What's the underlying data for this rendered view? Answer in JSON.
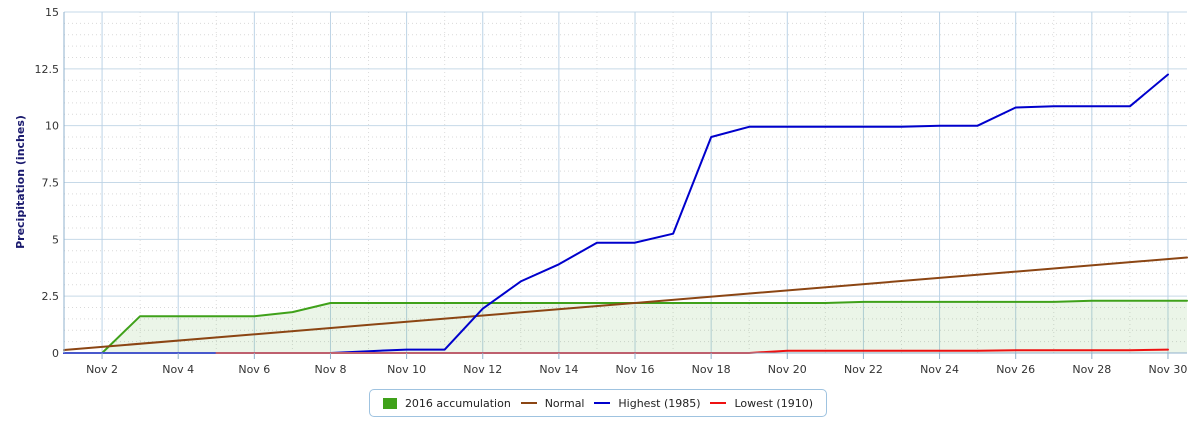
{
  "chart_data": {
    "type": "line",
    "ylabel": "Precipitation (inches)",
    "ylim": [
      0,
      15
    ],
    "xlim": [
      1,
      30.5
    ],
    "yticks": [
      "0",
      "2.5",
      "5",
      "7.5",
      "10",
      "12.5",
      "15"
    ],
    "xticks": [
      {
        "day": 2,
        "label": "Nov 2"
      },
      {
        "day": 4,
        "label": "Nov 4"
      },
      {
        "day": 6,
        "label": "Nov 6"
      },
      {
        "day": 8,
        "label": "Nov 8"
      },
      {
        "day": 10,
        "label": "Nov 10"
      },
      {
        "day": 12,
        "label": "Nov 12"
      },
      {
        "day": 14,
        "label": "Nov 14"
      },
      {
        "day": 16,
        "label": "Nov 16"
      },
      {
        "day": 18,
        "label": "Nov 18"
      },
      {
        "day": 20,
        "label": "Nov 20"
      },
      {
        "day": 22,
        "label": "Nov 22"
      },
      {
        "day": 24,
        "label": "Nov 24"
      },
      {
        "day": 26,
        "label": "Nov 26"
      },
      {
        "day": 28,
        "label": "Nov 28"
      },
      {
        "day": 30,
        "label": "Nov 30"
      }
    ],
    "grid": true,
    "legend_position": "bottom",
    "series": [
      {
        "name": "2016 accumulation",
        "kind": "area",
        "color": "#3fa11a",
        "points": [
          [
            2,
            0
          ],
          [
            3,
            1.62
          ],
          [
            4,
            1.62
          ],
          [
            5,
            1.62
          ],
          [
            6,
            1.62
          ],
          [
            7,
            1.8
          ],
          [
            8,
            2.2
          ],
          [
            9,
            2.2
          ],
          [
            10,
            2.2
          ],
          [
            11,
            2.2
          ],
          [
            12,
            2.2
          ],
          [
            13,
            2.2
          ],
          [
            14,
            2.2
          ],
          [
            15,
            2.2
          ],
          [
            16,
            2.2
          ],
          [
            17,
            2.2
          ],
          [
            18,
            2.2
          ],
          [
            19,
            2.2
          ],
          [
            20,
            2.2
          ],
          [
            21,
            2.2
          ],
          [
            22,
            2.25
          ],
          [
            23,
            2.25
          ],
          [
            24,
            2.25
          ],
          [
            25,
            2.25
          ],
          [
            26,
            2.25
          ],
          [
            27,
            2.25
          ],
          [
            28,
            2.3
          ],
          [
            29,
            2.3
          ],
          [
            30,
            2.3
          ],
          [
            30.5,
            2.3
          ]
        ]
      },
      {
        "name": "Normal",
        "kind": "line",
        "color": "#8b4513",
        "points": [
          [
            1,
            0.13
          ],
          [
            30.5,
            4.2
          ]
        ]
      },
      {
        "name": "Highest (1985)",
        "kind": "line",
        "color": "#0000cc",
        "points": [
          [
            1,
            0
          ],
          [
            2,
            0
          ],
          [
            3,
            0
          ],
          [
            4,
            0
          ],
          [
            5,
            0
          ],
          [
            6,
            0
          ],
          [
            7,
            0
          ],
          [
            8,
            0
          ],
          [
            9,
            0.08
          ],
          [
            10,
            0.15
          ],
          [
            11,
            0.15
          ],
          [
            12,
            1.95
          ],
          [
            13,
            3.15
          ],
          [
            14,
            3.9
          ],
          [
            15,
            4.85
          ],
          [
            16,
            4.85
          ],
          [
            17,
            5.25
          ],
          [
            18,
            9.5
          ],
          [
            19,
            9.95
          ],
          [
            20,
            9.95
          ],
          [
            21,
            9.95
          ],
          [
            22,
            9.95
          ],
          [
            23,
            9.95
          ],
          [
            24,
            10.0
          ],
          [
            25,
            10.0
          ],
          [
            26,
            10.8
          ],
          [
            27,
            10.85
          ],
          [
            28,
            10.85
          ],
          [
            29,
            10.85
          ],
          [
            30,
            12.25
          ]
        ]
      },
      {
        "name": "Lowest (1910)",
        "kind": "line",
        "color": "#ee1111",
        "points": [
          [
            5,
            0
          ],
          [
            8,
            0
          ],
          [
            10,
            0
          ],
          [
            13,
            0
          ],
          [
            16,
            0
          ],
          [
            18,
            0
          ],
          [
            19,
            0
          ],
          [
            20,
            0.1
          ],
          [
            21,
            0.1
          ],
          [
            22,
            0.1
          ],
          [
            24,
            0.1
          ],
          [
            25,
            0.1
          ],
          [
            26,
            0.12
          ],
          [
            28,
            0.12
          ],
          [
            29,
            0.12
          ],
          [
            30,
            0.15
          ]
        ]
      }
    ]
  },
  "legend": {
    "items": [
      {
        "label": "2016 accumulation",
        "color": "#3fa11a"
      },
      {
        "label": "Normal",
        "color": "#8b4513"
      },
      {
        "label": "Highest (1985)",
        "color": "#0000cc"
      },
      {
        "label": "Lowest (1910)",
        "color": "#ee1111"
      }
    ]
  }
}
